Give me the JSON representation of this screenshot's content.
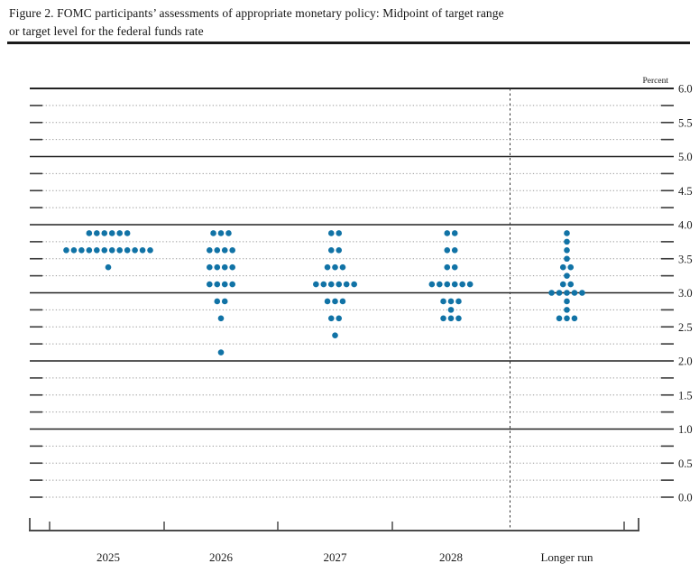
{
  "title": {
    "line1": "Figure 2. FOMC participants’ assessments of appropriate monetary policy: Midpoint of target range",
    "line2": "or target level for the federal funds rate"
  },
  "chart_data": {
    "type": "scatter",
    "subtype": "fomc-dot-plot",
    "unit_label": "Percent",
    "y_axis": {
      "min": 0.0,
      "max": 6.0,
      "grid_step": 0.25,
      "label_step": 0.5,
      "labels": [
        "6.0",
        "5.5",
        "5.0",
        "4.5",
        "4.0",
        "3.5",
        "3.0",
        "2.5",
        "2.0",
        "1.5",
        "1.0",
        "0.5",
        "0.0"
      ]
    },
    "categories": [
      "2025",
      "2026",
      "2027",
      "2028",
      "Longer run"
    ],
    "series": [
      {
        "category": "2025",
        "dots": [
          {
            "rate": 3.875,
            "count": 6
          },
          {
            "rate": 3.625,
            "count": 12
          },
          {
            "rate": 3.375,
            "count": 1
          }
        ]
      },
      {
        "category": "2026",
        "dots": [
          {
            "rate": 3.875,
            "count": 3
          },
          {
            "rate": 3.625,
            "count": 4
          },
          {
            "rate": 3.375,
            "count": 4
          },
          {
            "rate": 3.125,
            "count": 4
          },
          {
            "rate": 2.875,
            "count": 2
          },
          {
            "rate": 2.625,
            "count": 1
          },
          {
            "rate": 2.125,
            "count": 1
          }
        ]
      },
      {
        "category": "2027",
        "dots": [
          {
            "rate": 3.875,
            "count": 2
          },
          {
            "rate": 3.625,
            "count": 2
          },
          {
            "rate": 3.375,
            "count": 3
          },
          {
            "rate": 3.125,
            "count": 6
          },
          {
            "rate": 2.875,
            "count": 3
          },
          {
            "rate": 2.625,
            "count": 2
          },
          {
            "rate": 2.375,
            "count": 1
          }
        ]
      },
      {
        "category": "2028",
        "dots": [
          {
            "rate": 3.875,
            "count": 2
          },
          {
            "rate": 3.625,
            "count": 2
          },
          {
            "rate": 3.375,
            "count": 2
          },
          {
            "rate": 3.125,
            "count": 6
          },
          {
            "rate": 2.875,
            "count": 3
          },
          {
            "rate": 2.75,
            "count": 1
          },
          {
            "rate": 2.625,
            "count": 3
          }
        ]
      },
      {
        "category": "Longer run",
        "dots": [
          {
            "rate": 3.875,
            "count": 1
          },
          {
            "rate": 3.75,
            "count": 1
          },
          {
            "rate": 3.625,
            "count": 1
          },
          {
            "rate": 3.5,
            "count": 1
          },
          {
            "rate": 3.375,
            "count": 2
          },
          {
            "rate": 3.25,
            "count": 1
          },
          {
            "rate": 3.125,
            "count": 2
          },
          {
            "rate": 3.0,
            "count": 5
          },
          {
            "rate": 2.875,
            "count": 1
          },
          {
            "rate": 2.75,
            "count": 1
          },
          {
            "rate": 2.625,
            "count": 3
          }
        ]
      }
    ],
    "colors": {
      "dot": "#1173a6",
      "solid_grid": "#222222",
      "dotted_grid": "#9a9a9a",
      "axis": "#4a4a4a"
    }
  }
}
